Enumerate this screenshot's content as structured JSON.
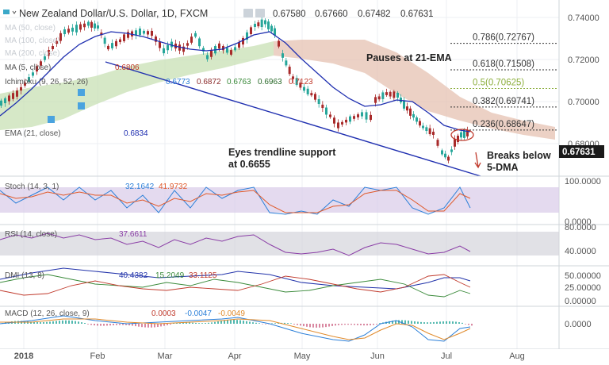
{
  "header": {
    "symbol_title": "New Zealand Dollar/U.S. Dollar, 1D, FXCM",
    "ohlc": [
      "0.67580",
      "0.67660",
      "0.67482",
      "0.67631"
    ]
  },
  "overlays": {
    "ma50": "MA (50, close)",
    "ma100": "MA (100, close)",
    "ma200": "MA (200, close)",
    "ma5": "MA (5, close)",
    "ma5_value": "0.6806",
    "ichimoku": "Ichimoku (9, 26, 52, 26)",
    "ichimoku_values": [
      "0.6773",
      "0.6872",
      "0.6763",
      "0.6963",
      "0.7123"
    ],
    "ema21": "EMA (21, close)",
    "ema21_value": "0.6834"
  },
  "annotations": {
    "pauses": "Pauses at 21-EMA",
    "eyes_line1": "Eyes trendline support",
    "eyes_line2": "at 0.6655",
    "breaks_line1": "Breaks below",
    "breaks_line2": "5-DMA"
  },
  "fib_levels": [
    {
      "label": "0.786(0.72767)",
      "value": 0.72767,
      "color": "#333333"
    },
    {
      "label": "0.618(0.71508)",
      "value": 0.71508,
      "color": "#333333"
    },
    {
      "label": "0.5(0.70625)",
      "value": 0.70625,
      "color": "#8cae3c"
    },
    {
      "label": "0.382(0.69741)",
      "value": 0.69741,
      "color": "#333333"
    },
    {
      "label": "0.236(0.68647)",
      "value": 0.68647,
      "color": "#333333"
    }
  ],
  "price_axis": {
    "ticks": [
      "0.74000",
      "0.72000",
      "0.70000",
      "0.68000"
    ],
    "last_price": "0.67631",
    "last_price_color": "#1a1a1a"
  },
  "indicators": {
    "stoch": {
      "label": "Stoch (14, 3, 1)",
      "values": [
        "32.1642",
        "41.9732"
      ],
      "colors": [
        "#2b7fd8",
        "#e05a2b"
      ],
      "ticks": [
        "100.0000",
        "0.0000"
      ]
    },
    "rsi": {
      "label": "RSI (14, close)",
      "value": "37.6611",
      "color": "#8a3da6",
      "ticks": [
        "80.0000",
        "40.0000"
      ]
    },
    "dmi": {
      "label": "DMI (13, 8)",
      "values": [
        "40.4382",
        "15.2049",
        "33.1125"
      ],
      "colors": [
        "#2233aa",
        "#3a8a3a",
        "#c0392b"
      ],
      "ticks": [
        "50.00000",
        "25.00000",
        "0.00000"
      ]
    },
    "macd": {
      "label": "MACD (12, 26, close, 9)",
      "values": [
        "0.0003",
        "-0.0047",
        "-0.0049"
      ],
      "colors": [
        "#c0392b",
        "#2b7fd8",
        "#e08a2b"
      ],
      "ticks": [
        "0.0000"
      ]
    }
  },
  "time_axis": [
    "2018",
    "Feb",
    "Mar",
    "Apr",
    "May",
    "Jun",
    "Jul",
    "Aug"
  ],
  "colors": {
    "bull": "#26a69a",
    "bear": "#a82a2a",
    "ema": "#1f2fb0",
    "trendline": "#1f2fb0",
    "kumo_bull": "#c8e0b4",
    "kumo_bear": "#e8c8b8"
  }
}
